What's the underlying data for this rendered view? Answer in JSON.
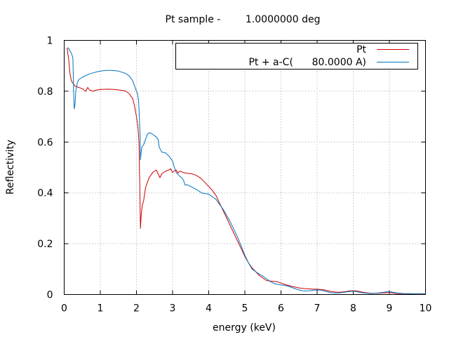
{
  "chart_data": {
    "type": "line",
    "title": "Pt sample -        1.0000000 deg",
    "xlabel": "energy (keV)",
    "ylabel": "Reflectivity",
    "xlim": [
      0,
      10
    ],
    "ylim": [
      0,
      1
    ],
    "xticks": [
      "0",
      "1",
      "2",
      "3",
      "4",
      "5",
      "6",
      "7",
      "8",
      "9",
      "10"
    ],
    "yticks": [
      "0",
      "0.2",
      "0.4",
      "0.6",
      "0.8",
      "1"
    ],
    "grid": true,
    "legend_position": "top-right",
    "series": [
      {
        "name": "Pt",
        "color": "#cc0000",
        "points": [
          [
            0.08,
            0.97
          ],
          [
            0.12,
            0.93
          ],
          [
            0.16,
            0.87
          ],
          [
            0.2,
            0.84
          ],
          [
            0.25,
            0.83
          ],
          [
            0.3,
            0.82
          ],
          [
            0.4,
            0.815
          ],
          [
            0.5,
            0.81
          ],
          [
            0.55,
            0.805
          ],
          [
            0.6,
            0.8
          ],
          [
            0.65,
            0.815
          ],
          [
            0.7,
            0.805
          ],
          [
            0.8,
            0.8
          ],
          [
            0.9,
            0.805
          ],
          [
            1.0,
            0.807
          ],
          [
            1.2,
            0.808
          ],
          [
            1.4,
            0.807
          ],
          [
            1.6,
            0.803
          ],
          [
            1.7,
            0.8
          ],
          [
            1.8,
            0.79
          ],
          [
            1.9,
            0.77
          ],
          [
            1.95,
            0.74
          ],
          [
            2.0,
            0.7
          ],
          [
            2.04,
            0.66
          ],
          [
            2.07,
            0.6
          ],
          [
            2.09,
            0.45
          ],
          [
            2.11,
            0.26
          ],
          [
            2.13,
            0.31
          ],
          [
            2.16,
            0.35
          ],
          [
            2.2,
            0.37
          ],
          [
            2.25,
            0.42
          ],
          [
            2.3,
            0.44
          ],
          [
            2.35,
            0.46
          ],
          [
            2.4,
            0.47
          ],
          [
            2.45,
            0.48
          ],
          [
            2.5,
            0.485
          ],
          [
            2.55,
            0.49
          ],
          [
            2.6,
            0.475
          ],
          [
            2.65,
            0.46
          ],
          [
            2.7,
            0.475
          ],
          [
            2.8,
            0.485
          ],
          [
            2.9,
            0.49
          ],
          [
            2.95,
            0.495
          ],
          [
            3.0,
            0.48
          ],
          [
            3.05,
            0.487
          ],
          [
            3.1,
            0.49
          ],
          [
            3.15,
            0.478
          ],
          [
            3.2,
            0.485
          ],
          [
            3.3,
            0.48
          ],
          [
            3.4,
            0.477
          ],
          [
            3.5,
            0.476
          ],
          [
            3.6,
            0.472
          ],
          [
            3.7,
            0.465
          ],
          [
            3.8,
            0.455
          ],
          [
            3.9,
            0.44
          ],
          [
            4.0,
            0.425
          ],
          [
            4.1,
            0.41
          ],
          [
            4.2,
            0.39
          ],
          [
            4.3,
            0.36
          ],
          [
            4.4,
            0.33
          ],
          [
            4.5,
            0.3
          ],
          [
            4.6,
            0.27
          ],
          [
            4.7,
            0.24
          ],
          [
            4.8,
            0.21
          ],
          [
            4.9,
            0.18
          ],
          [
            5.0,
            0.15
          ],
          [
            5.1,
            0.125
          ],
          [
            5.2,
            0.105
          ],
          [
            5.3,
            0.09
          ],
          [
            5.4,
            0.075
          ],
          [
            5.5,
            0.065
          ],
          [
            5.6,
            0.055
          ],
          [
            5.7,
            0.053
          ],
          [
            5.8,
            0.052
          ],
          [
            5.9,
            0.05
          ],
          [
            6.0,
            0.045
          ],
          [
            6.1,
            0.04
          ],
          [
            6.2,
            0.036
          ],
          [
            6.3,
            0.032
          ],
          [
            6.4,
            0.029
          ],
          [
            6.5,
            0.026
          ],
          [
            6.6,
            0.024
          ],
          [
            6.7,
            0.023
          ],
          [
            6.8,
            0.022
          ],
          [
            6.9,
            0.021
          ],
          [
            7.0,
            0.021
          ],
          [
            7.1,
            0.02
          ],
          [
            7.2,
            0.018
          ],
          [
            7.3,
            0.015
          ],
          [
            7.4,
            0.012
          ],
          [
            7.5,
            0.01
          ],
          [
            7.6,
            0.009
          ],
          [
            7.7,
            0.01
          ],
          [
            7.8,
            0.012
          ],
          [
            7.9,
            0.014
          ],
          [
            8.0,
            0.015
          ],
          [
            8.1,
            0.014
          ],
          [
            8.2,
            0.011
          ],
          [
            8.3,
            0.008
          ],
          [
            8.4,
            0.006
          ],
          [
            8.5,
            0.005
          ],
          [
            8.6,
            0.005
          ],
          [
            8.7,
            0.005
          ],
          [
            8.8,
            0.006
          ],
          [
            8.9,
            0.007
          ],
          [
            9.0,
            0.008
          ],
          [
            9.1,
            0.006
          ],
          [
            9.2,
            0.004
          ],
          [
            9.4,
            0.003
          ],
          [
            9.6,
            0.003
          ],
          [
            9.8,
            0.002
          ],
          [
            10.0,
            0.002
          ]
        ]
      },
      {
        "name": "Pt + a-C(      80.0000 A)",
        "color": "#0072bd",
        "points": [
          [
            0.08,
            0.97
          ],
          [
            0.12,
            0.97
          ],
          [
            0.15,
            0.96
          ],
          [
            0.2,
            0.95
          ],
          [
            0.24,
            0.93
          ],
          [
            0.26,
            0.8
          ],
          [
            0.28,
            0.73
          ],
          [
            0.3,
            0.75
          ],
          [
            0.32,
            0.8
          ],
          [
            0.36,
            0.83
          ],
          [
            0.4,
            0.845
          ],
          [
            0.5,
            0.855
          ],
          [
            0.6,
            0.862
          ],
          [
            0.7,
            0.868
          ],
          [
            0.8,
            0.872
          ],
          [
            0.9,
            0.876
          ],
          [
            1.0,
            0.879
          ],
          [
            1.1,
            0.881
          ],
          [
            1.2,
            0.882
          ],
          [
            1.3,
            0.882
          ],
          [
            1.4,
            0.881
          ],
          [
            1.5,
            0.879
          ],
          [
            1.6,
            0.875
          ],
          [
            1.7,
            0.87
          ],
          [
            1.8,
            0.86
          ],
          [
            1.85,
            0.85
          ],
          [
            1.9,
            0.84
          ],
          [
            1.95,
            0.82
          ],
          [
            2.0,
            0.8
          ],
          [
            2.03,
            0.79
          ],
          [
            2.06,
            0.76
          ],
          [
            2.08,
            0.7
          ],
          [
            2.1,
            0.62
          ],
          [
            2.11,
            0.53
          ],
          [
            2.13,
            0.56
          ],
          [
            2.15,
            0.58
          ],
          [
            2.2,
            0.59
          ],
          [
            2.25,
            0.61
          ],
          [
            2.3,
            0.63
          ],
          [
            2.35,
            0.636
          ],
          [
            2.4,
            0.635
          ],
          [
            2.45,
            0.63
          ],
          [
            2.5,
            0.625
          ],
          [
            2.55,
            0.62
          ],
          [
            2.6,
            0.61
          ],
          [
            2.63,
            0.58
          ],
          [
            2.67,
            0.57
          ],
          [
            2.7,
            0.56
          ],
          [
            2.8,
            0.558
          ],
          [
            2.9,
            0.545
          ],
          [
            3.0,
            0.525
          ],
          [
            3.05,
            0.5
          ],
          [
            3.1,
            0.48
          ],
          [
            3.2,
            0.465
          ],
          [
            3.25,
            0.46
          ],
          [
            3.3,
            0.45
          ],
          [
            3.35,
            0.43
          ],
          [
            3.4,
            0.432
          ],
          [
            3.5,
            0.425
          ],
          [
            3.6,
            0.418
          ],
          [
            3.7,
            0.41
          ],
          [
            3.8,
            0.4
          ],
          [
            3.9,
            0.397
          ],
          [
            4.0,
            0.395
          ],
          [
            4.1,
            0.385
          ],
          [
            4.2,
            0.375
          ],
          [
            4.3,
            0.355
          ],
          [
            4.4,
            0.335
          ],
          [
            4.5,
            0.31
          ],
          [
            4.6,
            0.285
          ],
          [
            4.7,
            0.255
          ],
          [
            4.8,
            0.225
          ],
          [
            4.9,
            0.19
          ],
          [
            5.0,
            0.155
          ],
          [
            5.1,
            0.125
          ],
          [
            5.2,
            0.1
          ],
          [
            5.3,
            0.09
          ],
          [
            5.4,
            0.08
          ],
          [
            5.5,
            0.072
          ],
          [
            5.6,
            0.062
          ],
          [
            5.7,
            0.052
          ],
          [
            5.8,
            0.044
          ],
          [
            5.9,
            0.04
          ],
          [
            6.0,
            0.038
          ],
          [
            6.1,
            0.036
          ],
          [
            6.2,
            0.033
          ],
          [
            6.3,
            0.028
          ],
          [
            6.4,
            0.022
          ],
          [
            6.5,
            0.018
          ],
          [
            6.6,
            0.015
          ],
          [
            6.7,
            0.014
          ],
          [
            6.8,
            0.015
          ],
          [
            6.9,
            0.017
          ],
          [
            7.0,
            0.018
          ],
          [
            7.1,
            0.017
          ],
          [
            7.2,
            0.014
          ],
          [
            7.3,
            0.01
          ],
          [
            7.4,
            0.007
          ],
          [
            7.5,
            0.006
          ],
          [
            7.6,
            0.006
          ],
          [
            7.7,
            0.008
          ],
          [
            7.8,
            0.01
          ],
          [
            7.9,
            0.012
          ],
          [
            8.0,
            0.013
          ],
          [
            8.1,
            0.011
          ],
          [
            8.2,
            0.008
          ],
          [
            8.3,
            0.006
          ],
          [
            8.4,
            0.005
          ],
          [
            8.5,
            0.004
          ],
          [
            8.6,
            0.005
          ],
          [
            8.7,
            0.006
          ],
          [
            8.8,
            0.008
          ],
          [
            8.9,
            0.01
          ],
          [
            9.0,
            0.011
          ],
          [
            9.1,
            0.009
          ],
          [
            9.2,
            0.006
          ],
          [
            9.4,
            0.004
          ],
          [
            9.6,
            0.003
          ],
          [
            9.8,
            0.003
          ],
          [
            10.0,
            0.003
          ]
        ]
      }
    ]
  }
}
